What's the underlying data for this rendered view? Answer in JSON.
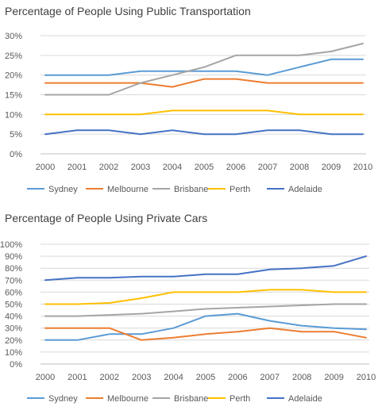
{
  "chart_data": [
    {
      "type": "line",
      "title": "Percentage of People Using Public Transportation",
      "categories": [
        "2000",
        "2001",
        "2002",
        "2003",
        "2004",
        "2005",
        "2006",
        "2007",
        "2008",
        "2009",
        "2010"
      ],
      "ylim": [
        0,
        30
      ],
      "yticks": [
        "0%",
        "5%",
        "10%",
        "15%",
        "20%",
        "25%",
        "30%"
      ],
      "legend": "bottom",
      "grid": true,
      "series": [
        {
          "name": "Sydney",
          "color": "#5b9bd5",
          "values": [
            20,
            20,
            20,
            21,
            21,
            21,
            21,
            20,
            22,
            24,
            24
          ]
        },
        {
          "name": "Melbourne",
          "color": "#ed7d31",
          "values": [
            18,
            18,
            18,
            18,
            17,
            19,
            19,
            18,
            18,
            18,
            18
          ]
        },
        {
          "name": "Brisbane",
          "color": "#a5a5a5",
          "values": [
            15,
            15,
            15,
            18,
            20,
            22,
            25,
            25,
            25,
            26,
            28
          ]
        },
        {
          "name": "Perth",
          "color": "#ffc000",
          "values": [
            10,
            10,
            10,
            10,
            11,
            11,
            11,
            11,
            10,
            10,
            10
          ]
        },
        {
          "name": "Adelaide",
          "color": "#4472c4",
          "values": [
            5,
            6,
            6,
            5,
            6,
            5,
            5,
            6,
            6,
            5,
            5
          ]
        }
      ]
    },
    {
      "type": "line",
      "title": "Percentage of People Using Private Cars",
      "categories": [
        "2000",
        "2001",
        "2002",
        "2003",
        "2004",
        "2005",
        "2006",
        "2007",
        "2008",
        "2009",
        "2010"
      ],
      "ylim": [
        0,
        100
      ],
      "yticks": [
        "0%",
        "10%",
        "20%",
        "30%",
        "40%",
        "50%",
        "60%",
        "70%",
        "80%",
        "90%",
        "100%"
      ],
      "legend": "bottom",
      "grid": true,
      "series": [
        {
          "name": "Sydney",
          "color": "#5b9bd5",
          "values": [
            20,
            20,
            25,
            25,
            30,
            40,
            42,
            36,
            32,
            30,
            29
          ]
        },
        {
          "name": "Melbourne",
          "color": "#ed7d31",
          "values": [
            30,
            30,
            30,
            20,
            22,
            25,
            27,
            30,
            27,
            27,
            22
          ]
        },
        {
          "name": "Brisbane",
          "color": "#a5a5a5",
          "values": [
            40,
            40,
            41,
            42,
            44,
            46,
            47,
            48,
            49,
            50,
            50
          ]
        },
        {
          "name": "Perth",
          "color": "#ffc000",
          "values": [
            50,
            50,
            51,
            55,
            60,
            60,
            60,
            62,
            62,
            60,
            60
          ]
        },
        {
          "name": "Adelaide",
          "color": "#4472c4",
          "values": [
            70,
            72,
            72,
            73,
            73,
            75,
            75,
            79,
            80,
            82,
            90
          ]
        }
      ]
    }
  ]
}
